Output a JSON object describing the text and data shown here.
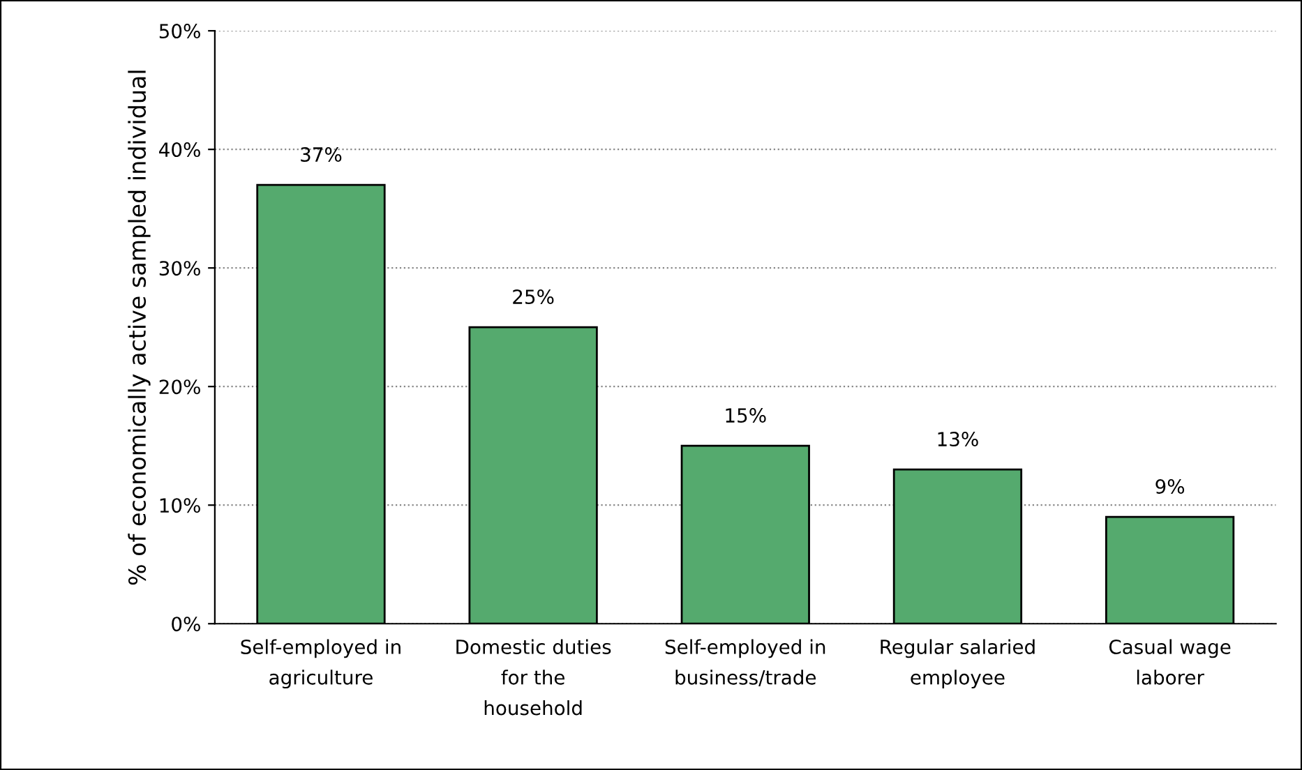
{
  "chart_data": {
    "type": "bar",
    "ylabel": "% of economically active sampled individual",
    "categories": [
      "Self-employed in\nagriculture",
      "Domestic duties\nfor the\nhousehold",
      "Self-employed in\nbusiness/trade",
      "Regular salaried\nemployee",
      "Casual wage\nlaborer"
    ],
    "values": [
      37,
      25,
      15,
      13,
      9
    ],
    "value_labels": [
      "37%",
      "25%",
      "15%",
      "13%",
      "9%"
    ],
    "color": "#55aa6e",
    "ylim": [
      0,
      50
    ],
    "yticks": [
      {
        "value": 0,
        "label": "0%"
      },
      {
        "value": 10,
        "label": "10%"
      },
      {
        "value": 20,
        "label": "20%"
      },
      {
        "value": 30,
        "label": "30%"
      },
      {
        "value": 40,
        "label": "40%"
      },
      {
        "value": 50,
        "label": "50%"
      }
    ],
    "grid": "y"
  }
}
